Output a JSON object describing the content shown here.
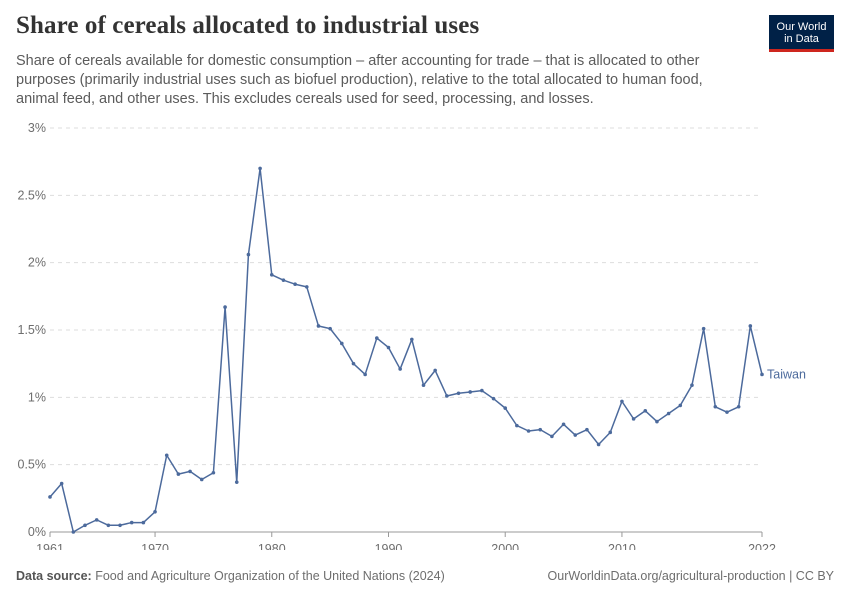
{
  "header": {
    "title": "Share of cereals allocated to industrial uses",
    "subtitle": "Share of cereals available for domestic consumption – after accounting for trade – that is allocated to other purposes (primarily industrial uses such as biofuel production), relative to the total allocated to human food, animal feed, and other uses. This excludes cereals used for seed, processing, and losses."
  },
  "logo": {
    "line1": "Our World",
    "line2": "in Data",
    "bg_color": "#002147",
    "accent_color": "#ce261e"
  },
  "footer": {
    "source_label": "Data source:",
    "source_text": "Food and Agriculture Organization of the United Nations (2024)",
    "right_text": "OurWorldinData.org/agricultural-production | CC BY"
  },
  "chart_data": {
    "type": "line",
    "xlim": [
      1961,
      2022
    ],
    "ylim": [
      0,
      3
    ],
    "y_unit": "%",
    "grid": "horizontal dashed",
    "y_ticks": [
      {
        "value": 0,
        "label": "0%"
      },
      {
        "value": 0.5,
        "label": "0.5%"
      },
      {
        "value": 1,
        "label": "1%"
      },
      {
        "value": 1.5,
        "label": "1.5%"
      },
      {
        "value": 2,
        "label": "2%"
      },
      {
        "value": 2.5,
        "label": "2.5%"
      },
      {
        "value": 3,
        "label": "3%"
      }
    ],
    "x_ticks": [
      {
        "value": 1961,
        "label": "1961"
      },
      {
        "value": 1970,
        "label": "1970"
      },
      {
        "value": 1980,
        "label": "1980"
      },
      {
        "value": 1990,
        "label": "1990"
      },
      {
        "value": 2000,
        "label": "2000"
      },
      {
        "value": 2010,
        "label": "2010"
      },
      {
        "value": 2022,
        "label": "2022"
      }
    ],
    "series": [
      {
        "name": "Taiwan",
        "color": "#4c6a9c",
        "x": [
          1961,
          1962,
          1963,
          1964,
          1965,
          1966,
          1967,
          1968,
          1969,
          1970,
          1971,
          1972,
          1973,
          1974,
          1975,
          1976,
          1977,
          1978,
          1979,
          1980,
          1981,
          1982,
          1983,
          1984,
          1985,
          1986,
          1987,
          1988,
          1989,
          1990,
          1991,
          1992,
          1993,
          1994,
          1995,
          1996,
          1997,
          1998,
          1999,
          2000,
          2001,
          2002,
          2003,
          2004,
          2005,
          2006,
          2007,
          2008,
          2009,
          2010,
          2011,
          2012,
          2013,
          2014,
          2015,
          2016,
          2017,
          2018,
          2019,
          2020,
          2021,
          2022
        ],
        "y": [
          0.26,
          0.36,
          0.0,
          0.05,
          0.09,
          0.05,
          0.05,
          0.07,
          0.07,
          0.15,
          0.57,
          0.43,
          0.45,
          0.39,
          0.44,
          1.67,
          0.37,
          2.06,
          2.7,
          1.91,
          1.87,
          1.84,
          1.82,
          1.53,
          1.51,
          1.4,
          1.25,
          1.17,
          1.44,
          1.37,
          1.21,
          1.43,
          1.09,
          1.2,
          1.01,
          1.03,
          1.04,
          1.05,
          0.99,
          0.92,
          0.79,
          0.75,
          0.76,
          0.71,
          0.8,
          0.72,
          0.76,
          0.65,
          0.74,
          0.97,
          0.84,
          0.9,
          0.82,
          0.88,
          0.94,
          1.09,
          1.51,
          0.93,
          0.89,
          0.93,
          1.53,
          1.17
        ]
      }
    ]
  }
}
